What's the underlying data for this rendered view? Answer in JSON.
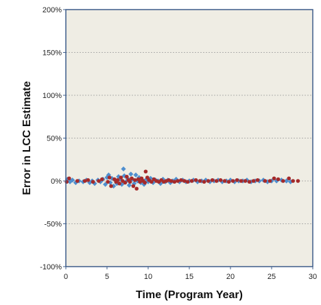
{
  "chart_data": {
    "type": "scatter",
    "title": "",
    "xlabel": "Time (Program Year)",
    "ylabel": "Error in LCC Estimate",
    "xlim": [
      0,
      30
    ],
    "ylim": [
      -100,
      200
    ],
    "x_ticks": [
      0,
      5,
      10,
      15,
      20,
      25,
      30
    ],
    "y_ticks": [
      -100,
      -50,
      0,
      50,
      100,
      150,
      200
    ],
    "y_tick_labels": [
      "-100%",
      "-50%",
      "0%",
      "50%",
      "100%",
      "150%",
      "200%"
    ],
    "grid": "horizontal dashed",
    "legend": "none",
    "plot_background": "#efede4",
    "frame_color": "#3d5c8a",
    "series": [
      {
        "marker": "diamond",
        "color": "#4f8fcf",
        "points": [
          [
            0.2,
            2
          ],
          [
            0.5,
            -1
          ],
          [
            0.8,
            1
          ],
          [
            1.2,
            -2
          ],
          [
            1.6,
            0
          ],
          [
            2.1,
            -1
          ],
          [
            2.5,
            1
          ],
          [
            2.9,
            -2
          ],
          [
            3.2,
            0
          ],
          [
            3.5,
            -3
          ],
          [
            3.9,
            1
          ],
          [
            4.2,
            -1
          ],
          [
            4.5,
            2
          ],
          [
            4.8,
            -4
          ],
          [
            5.0,
            4
          ],
          [
            5.2,
            7
          ],
          [
            5.4,
            -2
          ],
          [
            5.6,
            3
          ],
          [
            5.8,
            -6
          ],
          [
            6.0,
            1
          ],
          [
            6.2,
            -3
          ],
          [
            6.4,
            5
          ],
          [
            6.6,
            2
          ],
          [
            6.8,
            -4
          ],
          [
            7.0,
            14
          ],
          [
            7.1,
            6
          ],
          [
            7.3,
            -1
          ],
          [
            7.5,
            3
          ],
          [
            7.7,
            -5
          ],
          [
            7.9,
            8
          ],
          [
            8.1,
            2
          ],
          [
            8.3,
            -3
          ],
          [
            8.5,
            7
          ],
          [
            8.7,
            0
          ],
          [
            8.9,
            4
          ],
          [
            9.1,
            -2
          ],
          [
            9.3,
            1
          ],
          [
            9.5,
            -4
          ],
          [
            9.8,
            2
          ],
          [
            10.0,
            -1
          ],
          [
            10.3,
            3
          ],
          [
            10.6,
            -2
          ],
          [
            10.9,
            1
          ],
          [
            11.2,
            0
          ],
          [
            11.5,
            -3
          ],
          [
            11.8,
            2
          ],
          [
            12.1,
            -1
          ],
          [
            12.4,
            1
          ],
          [
            12.7,
            -2
          ],
          [
            13.0,
            0
          ],
          [
            13.4,
            2
          ],
          [
            13.8,
            -1
          ],
          [
            14.2,
            1
          ],
          [
            14.6,
            -1
          ],
          [
            15.0,
            0
          ],
          [
            15.5,
            1
          ],
          [
            16.0,
            -1
          ],
          [
            16.5,
            0
          ],
          [
            17.0,
            1
          ],
          [
            17.5,
            -1
          ],
          [
            18.0,
            0
          ],
          [
            18.5,
            1
          ],
          [
            19.0,
            -1
          ],
          [
            19.5,
            0
          ],
          [
            20.0,
            1
          ],
          [
            20.5,
            -1
          ],
          [
            21.0,
            0
          ],
          [
            21.5,
            0
          ],
          [
            22.0,
            1
          ],
          [
            22.5,
            -1
          ],
          [
            23.0,
            0
          ],
          [
            23.5,
            0
          ],
          [
            24.0,
            1
          ],
          [
            24.5,
            -1
          ],
          [
            25.0,
            0
          ],
          [
            25.6,
            0
          ],
          [
            26.2,
            1
          ],
          [
            26.8,
            0
          ],
          [
            27.3,
            -1
          ]
        ]
      },
      {
        "marker": "circle",
        "color": "#a52a2a",
        "points": [
          [
            0.1,
            -1
          ],
          [
            0.4,
            3
          ],
          [
            1.4,
            0
          ],
          [
            2.3,
            0
          ],
          [
            2.7,
            1
          ],
          [
            3.3,
            -1
          ],
          [
            4.0,
            0
          ],
          [
            4.4,
            2
          ],
          [
            5.1,
            -1
          ],
          [
            5.3,
            4
          ],
          [
            5.5,
            -6
          ],
          [
            5.9,
            2
          ],
          [
            6.1,
            -1
          ],
          [
            6.3,
            1
          ],
          [
            6.5,
            -3
          ],
          [
            6.7,
            4
          ],
          [
            6.9,
            0
          ],
          [
            7.2,
            -2
          ],
          [
            7.4,
            5
          ],
          [
            7.6,
            1
          ],
          [
            7.8,
            -1
          ],
          [
            8.0,
            3
          ],
          [
            8.2,
            -6
          ],
          [
            8.4,
            1
          ],
          [
            8.6,
            -9
          ],
          [
            8.8,
            2
          ],
          [
            9.0,
            -1
          ],
          [
            9.2,
            3
          ],
          [
            9.4,
            0
          ],
          [
            9.6,
            -2
          ],
          [
            9.7,
            11
          ],
          [
            9.9,
            4
          ],
          [
            10.1,
            1
          ],
          [
            10.4,
            -1
          ],
          [
            10.7,
            2
          ],
          [
            11.0,
            0
          ],
          [
            11.3,
            -1
          ],
          [
            11.6,
            1
          ],
          [
            11.9,
            -1
          ],
          [
            12.2,
            0
          ],
          [
            12.5,
            1
          ],
          [
            12.8,
            0
          ],
          [
            13.2,
            -1
          ],
          [
            13.6,
            0
          ],
          [
            14.0,
            1
          ],
          [
            14.4,
            0
          ],
          [
            14.8,
            -1
          ],
          [
            15.3,
            0
          ],
          [
            15.8,
            1
          ],
          [
            16.3,
            0
          ],
          [
            16.8,
            -1
          ],
          [
            17.3,
            0
          ],
          [
            17.8,
            1
          ],
          [
            18.3,
            0
          ],
          [
            18.8,
            1
          ],
          [
            19.3,
            0
          ],
          [
            19.8,
            -1
          ],
          [
            20.3,
            0
          ],
          [
            20.8,
            1
          ],
          [
            21.3,
            0
          ],
          [
            21.8,
            0
          ],
          [
            22.3,
            -1
          ],
          [
            22.8,
            0
          ],
          [
            23.3,
            1
          ],
          [
            24.2,
            0
          ],
          [
            24.8,
            0
          ],
          [
            25.3,
            3
          ],
          [
            25.8,
            2
          ],
          [
            26.4,
            0
          ],
          [
            27.1,
            3
          ],
          [
            27.6,
            0
          ],
          [
            28.2,
            0
          ]
        ]
      }
    ]
  }
}
